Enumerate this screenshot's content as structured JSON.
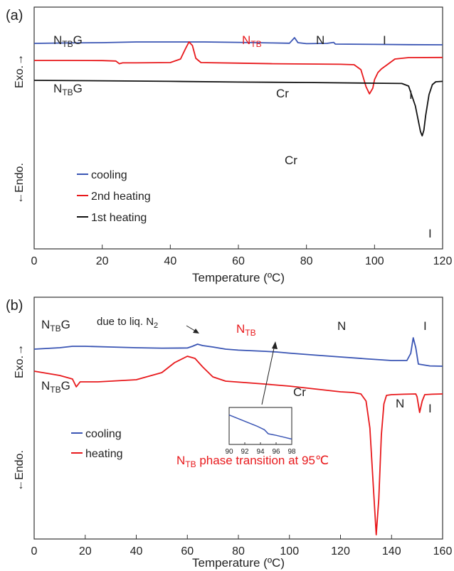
{
  "chart_data": [
    {
      "type": "line",
      "panel_label": "(a)",
      "xlabel": "Temperature (ºC)",
      "ylabel_top": "Exo.→",
      "ylabel_bottom": "←Endo.",
      "xlim": [
        0,
        120
      ],
      "xticks": [
        0,
        20,
        40,
        60,
        80,
        100,
        120
      ],
      "legend_position": "bottom-left",
      "colors": {
        "cooling": "#3a55b4",
        "heating2": "#e8191c",
        "heating1": "#111111"
      },
      "legend": [
        {
          "label": "cooling",
          "color": "#3a55b4"
        },
        {
          "label": "2nd heating",
          "color": "#e8191c"
        },
        {
          "label": "1st heating",
          "color": "#111111"
        }
      ],
      "annotations": {
        "ntbg_top": {
          "main": "N",
          "sub": "TB",
          "tail": "G"
        },
        "ntb": {
          "main": "N",
          "sub": "TB",
          "tail": ""
        },
        "n": "N",
        "i_top": "I",
        "ntbg_mid": {
          "main": "N",
          "sub": "TB",
          "tail": "G"
        },
        "cr_mid": "Cr",
        "i_mid": "I",
        "cr_low": "Cr",
        "i_low": "I"
      },
      "series": [
        {
          "name": "cooling",
          "points": [
            [
              0,
              0.15
            ],
            [
              10,
              0.12
            ],
            [
              20,
              0.1
            ],
            [
              30,
              0.05
            ],
            [
              40,
              0.05
            ],
            [
              50,
              0.05
            ],
            [
              60,
              0.08
            ],
            [
              70,
              0.12
            ],
            [
              75,
              0.14
            ],
            [
              76.5,
              -0.25
            ],
            [
              77.5,
              0.1
            ],
            [
              80,
              0.17
            ],
            [
              86,
              0.15
            ],
            [
              88,
              0.08
            ],
            [
              88.5,
              0.2
            ],
            [
              100,
              0.22
            ],
            [
              110,
              0.24
            ],
            [
              120,
              0.25
            ]
          ]
        },
        {
          "name": "2nd heating",
          "points": [
            [
              0,
              1.65
            ],
            [
              10,
              1.65
            ],
            [
              20,
              1.66
            ],
            [
              24,
              1.69
            ],
            [
              25,
              1.88
            ],
            [
              26,
              1.82
            ],
            [
              30,
              1.82
            ],
            [
              40,
              1.8
            ],
            [
              43,
              1.55
            ],
            [
              44.5,
              0.8
            ],
            [
              45.5,
              0.35
            ],
            [
              46.5,
              0.6
            ],
            [
              47.5,
              1.5
            ],
            [
              49,
              1.8
            ],
            [
              60,
              1.84
            ],
            [
              70,
              1.88
            ],
            [
              80,
              1.9
            ],
            [
              90,
              1.92
            ],
            [
              94,
              1.95
            ],
            [
              96,
              2.3
            ],
            [
              97.5,
              3.5
            ],
            [
              98.5,
              4.0
            ],
            [
              99.5,
              3.6
            ],
            [
              100,
              3.0
            ],
            [
              101,
              2.5
            ],
            [
              102,
              2.25
            ],
            [
              104,
              1.9
            ],
            [
              106,
              1.55
            ],
            [
              110,
              1.45
            ],
            [
              120,
              1.44
            ]
          ]
        },
        {
          "name": "1st heating",
          "points": [
            [
              0,
              3.0
            ],
            [
              20,
              3.03
            ],
            [
              40,
              3.07
            ],
            [
              60,
              3.12
            ],
            [
              80,
              3.15
            ],
            [
              100,
              3.2
            ],
            [
              108,
              3.22
            ],
            [
              110,
              3.4
            ],
            [
              112,
              4.8
            ],
            [
              113.5,
              6.6
            ],
            [
              114,
              6.9
            ],
            [
              114.5,
              6.5
            ],
            [
              115,
              5.5
            ],
            [
              116,
              4.0
            ],
            [
              117,
              3.3
            ],
            [
              118,
              3.1
            ],
            [
              120,
              3.07
            ]
          ]
        }
      ]
    },
    {
      "type": "line",
      "panel_label": "(b)",
      "xlabel": "Temperature (ºC)",
      "ylabel_top": "Exo.→",
      "ylabel_bottom": "←Endo.",
      "xlim": [
        0,
        160
      ],
      "xticks": [
        0,
        20,
        40,
        60,
        80,
        100,
        120,
        140,
        160
      ],
      "legend_position": "bottom-left",
      "colors": {
        "cooling": "#3a55b4",
        "heating": "#e8191c"
      },
      "legend": [
        {
          "label": "cooling",
          "color": "#3a55b4"
        },
        {
          "label": "heating",
          "color": "#e8191c"
        }
      ],
      "annotations": {
        "ntbg_top": {
          "main": "N",
          "sub": "TB",
          "tail": "G"
        },
        "liq": {
          "main": "due to liq. N",
          "sub": "2"
        },
        "ntb": {
          "main": "N",
          "sub": "TB",
          "tail": ""
        },
        "n_top": "N",
        "i_top": "I",
        "ntbg_mid": {
          "main": "N",
          "sub": "TB",
          "tail": "G"
        },
        "cr": "Cr",
        "n_mid": "N",
        "i_mid": "I",
        "transition": {
          "main": "N",
          "sub": "TB",
          "tail": " phase transition at  95℃"
        }
      },
      "inset": {
        "xlim": [
          90,
          98
        ],
        "xticks": [
          90,
          92,
          94,
          96,
          98
        ],
        "points": [
          [
            90,
            0.15
          ],
          [
            92,
            0.35
          ],
          [
            93.5,
            0.5
          ],
          [
            94.5,
            0.62
          ],
          [
            95,
            0.75
          ],
          [
            96,
            0.8
          ],
          [
            97,
            0.86
          ],
          [
            98,
            0.92
          ]
        ]
      },
      "series": [
        {
          "name": "cooling",
          "points": [
            [
              0,
              1.2
            ],
            [
              10,
              1.1
            ],
            [
              15,
              1.0
            ],
            [
              20,
              1.0
            ],
            [
              30,
              1.05
            ],
            [
              40,
              1.1
            ],
            [
              50,
              1.13
            ],
            [
              60,
              1.12
            ],
            [
              62,
              1.0
            ],
            [
              64,
              0.85
            ],
            [
              66,
              0.95
            ],
            [
              70,
              1.05
            ],
            [
              75,
              1.2
            ],
            [
              80,
              1.27
            ],
            [
              90,
              1.35
            ],
            [
              95,
              1.4
            ],
            [
              100,
              1.48
            ],
            [
              110,
              1.62
            ],
            [
              120,
              1.75
            ],
            [
              130,
              1.88
            ],
            [
              140,
              2.0
            ],
            [
              146,
              2.0
            ],
            [
              147.5,
              1.5
            ],
            [
              148.5,
              0.4
            ],
            [
              149.5,
              1.1
            ],
            [
              150.5,
              2.25
            ],
            [
              155,
              2.38
            ],
            [
              160,
              2.4
            ]
          ]
        },
        {
          "name": "heating",
          "points": [
            [
              0,
              4.5
            ],
            [
              10,
              4.8
            ],
            [
              15,
              5.05
            ],
            [
              16.5,
              5.6
            ],
            [
              18,
              5.25
            ],
            [
              25,
              5.25
            ],
            [
              40,
              5.1
            ],
            [
              50,
              4.6
            ],
            [
              55,
              3.9
            ],
            [
              60,
              3.45
            ],
            [
              63,
              3.6
            ],
            [
              66,
              4.2
            ],
            [
              70,
              4.9
            ],
            [
              75,
              5.2
            ],
            [
              90,
              5.4
            ],
            [
              100,
              5.55
            ],
            [
              110,
              5.75
            ],
            [
              120,
              5.95
            ],
            [
              125,
              6.0
            ],
            [
              128,
              6.1
            ],
            [
              130,
              6.6
            ],
            [
              131.5,
              8.5
            ],
            [
              133,
              13.0
            ],
            [
              134,
              16.0
            ],
            [
              135,
              13.5
            ],
            [
              136,
              9.0
            ],
            [
              137,
              6.8
            ],
            [
              138,
              6.2
            ],
            [
              140,
              6.15
            ],
            [
              145,
              6.12
            ],
            [
              149.5,
              6.1
            ],
            [
              150,
              6.3
            ],
            [
              151,
              7.4
            ],
            [
              152,
              6.6
            ],
            [
              153,
              6.15
            ],
            [
              156,
              6.12
            ],
            [
              160,
              6.1
            ]
          ]
        }
      ]
    }
  ]
}
